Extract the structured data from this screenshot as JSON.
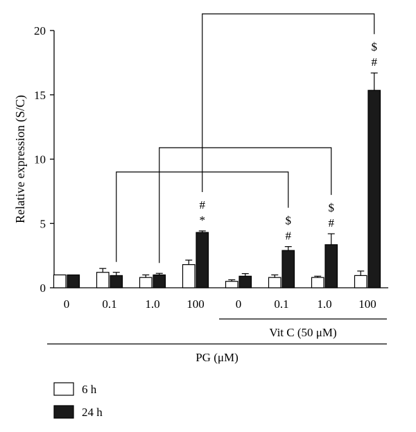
{
  "chart_data": {
    "type": "bar",
    "ylabel": "Relative expression (S/C)",
    "ylim": [
      0,
      20
    ],
    "yticks": [
      0,
      5,
      10,
      15,
      20
    ],
    "categories": [
      "0",
      "0.1",
      "1.0",
      "100",
      "0",
      "0.1",
      "1.0",
      "100"
    ],
    "series": [
      {
        "name": "6 h",
        "fill": "#ffffff",
        "values": [
          1.0,
          1.2,
          0.8,
          1.8,
          0.5,
          0.8,
          0.8,
          0.95
        ]
      },
      {
        "name": "24 h",
        "fill": "#1a1a1a",
        "values": [
          1.0,
          0.95,
          1.0,
          4.3,
          0.9,
          2.9,
          3.35,
          15.35
        ]
      }
    ],
    "errors": [
      [
        0,
        0.3,
        0.2,
        0.35,
        0.12,
        0.2,
        0.1,
        0.35
      ],
      [
        0,
        0.25,
        0.12,
        0.12,
        0.2,
        0.3,
        0.85,
        1.35
      ]
    ],
    "annotations": [
      {
        "group": 3,
        "lines": [
          "#",
          "*"
        ]
      },
      {
        "group": 5,
        "lines": [
          "$",
          "#"
        ]
      },
      {
        "group": 6,
        "lines": [
          "$",
          "#"
        ]
      },
      {
        "group": 7,
        "lines": [
          "$",
          "#"
        ]
      }
    ],
    "brackets": [
      {
        "from": 1,
        "to": 5
      },
      {
        "from": 2,
        "to": 6
      },
      {
        "from": 3,
        "to": 7
      }
    ],
    "group_labels": [
      {
        "label": "Vit C (50 μM)",
        "from": 4,
        "to": 7
      },
      {
        "label": "PG (μM)",
        "from": 0,
        "to": 7
      }
    ],
    "legend_position": "bottom-left"
  }
}
